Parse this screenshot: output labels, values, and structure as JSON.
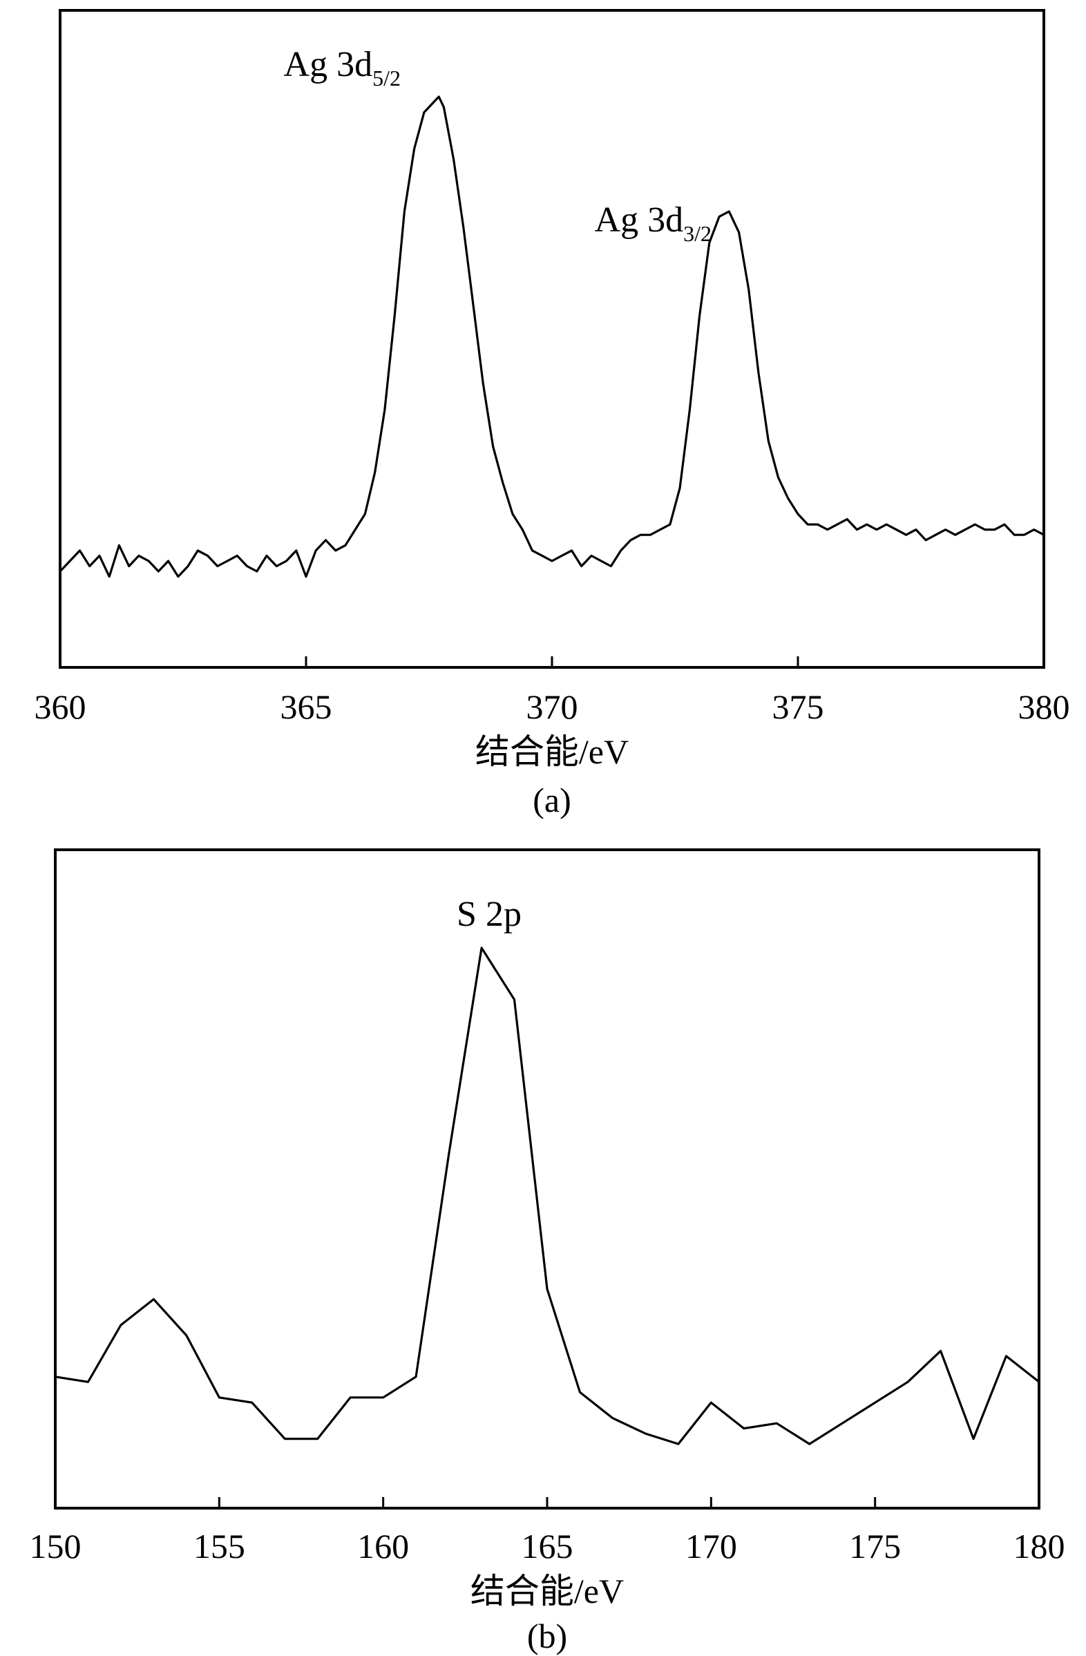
{
  "chart_data": [
    {
      "type": "line",
      "panel_label": "(a)",
      "xlabel": "结合能/eV",
      "ylabel": "",
      "xlim": [
        360,
        380
      ],
      "ylim": [
        0,
        100
      ],
      "xticks": [
        "360",
        "365",
        "370",
        "375",
        "380"
      ],
      "grid": false,
      "legend": "none",
      "annotations": [
        {
          "main": "Ag 3d",
          "sub": "5/2",
          "x": 367.7
        },
        {
          "main": "Ag 3d",
          "sub": "3/2",
          "x": 373.6
        }
      ],
      "series": [
        {
          "x": [
            360.0,
            360.2,
            360.4,
            360.6,
            360.8,
            361.0,
            361.2,
            361.4,
            361.6,
            361.8,
            362.0,
            362.2,
            362.4,
            362.6,
            362.8,
            363.0,
            363.2,
            363.4,
            363.6,
            363.8,
            364.0,
            364.2,
            364.4,
            364.6,
            364.8,
            365.0,
            365.2,
            365.4,
            365.6,
            365.8,
            366.0,
            366.2,
            366.4,
            366.6,
            366.8,
            367.0,
            367.2,
            367.4,
            367.6,
            367.7,
            367.8,
            368.0,
            368.2,
            368.4,
            368.6,
            368.8,
            369.0,
            369.2,
            369.4,
            369.6,
            369.8,
            370.0,
            370.2,
            370.4,
            370.6,
            370.8,
            371.0,
            371.2,
            371.4,
            371.6,
            371.8,
            372.0,
            372.2,
            372.4,
            372.6,
            372.8,
            373.0,
            373.2,
            373.4,
            373.6,
            373.8,
            374.0,
            374.2,
            374.4,
            374.6,
            374.8,
            375.0,
            375.2,
            375.4,
            375.6,
            375.8,
            376.0,
            376.2,
            376.4,
            376.6,
            376.8,
            377.0,
            377.2,
            377.4,
            377.6,
            377.8,
            378.0,
            378.2,
            378.4,
            378.6,
            378.8,
            379.0,
            379.2,
            379.4,
            379.6,
            379.8,
            380.0
          ],
          "y": [
            9,
            11,
            13,
            10,
            12,
            8,
            14,
            10,
            12,
            11,
            9,
            11,
            8,
            10,
            13,
            12,
            10,
            11,
            12,
            10,
            9,
            12,
            10,
            11,
            13,
            8,
            13,
            15,
            13,
            14,
            17,
            20,
            28,
            40,
            58,
            78,
            90,
            97,
            99,
            100,
            98,
            88,
            75,
            60,
            45,
            33,
            26,
            20,
            17,
            13,
            12,
            11,
            12,
            13,
            10,
            12,
            11,
            10,
            13,
            15,
            16,
            16,
            17,
            18,
            25,
            40,
            58,
            72,
            77,
            78,
            74,
            63,
            47,
            34,
            27,
            23,
            20,
            18,
            18,
            17,
            18,
            19,
            17,
            18,
            17,
            18,
            17,
            16,
            17,
            15,
            16,
            17,
            16,
            17,
            18,
            17,
            17,
            18,
            16,
            16,
            17,
            16
          ]
        }
      ]
    },
    {
      "type": "line",
      "panel_label": "(b)",
      "xlabel": "结合能/eV",
      "ylabel": "",
      "xlim": [
        150,
        180
      ],
      "ylim": [
        0,
        100
      ],
      "xticks": [
        "150",
        "155",
        "160",
        "165",
        "170",
        "175",
        "180"
      ],
      "grid": false,
      "legend": "none",
      "annotations": [
        {
          "main": "S 2p",
          "sub": "",
          "x": 163.0
        }
      ],
      "series": [
        {
          "x": [
            150,
            151,
            152,
            153,
            154,
            155,
            156,
            157,
            158,
            159,
            160,
            161,
            162,
            163,
            164,
            165,
            166,
            167,
            168,
            169,
            170,
            171,
            172,
            173,
            174,
            175,
            176,
            177,
            178,
            179,
            180
          ],
          "y": [
            17,
            16,
            27,
            32,
            25,
            13,
            12,
            5,
            5,
            13,
            13,
            17,
            60,
            100,
            90,
            34,
            14,
            9,
            6,
            4,
            12,
            7,
            8,
            4,
            8,
            12,
            16,
            22,
            5,
            21,
            16
          ]
        }
      ]
    }
  ]
}
